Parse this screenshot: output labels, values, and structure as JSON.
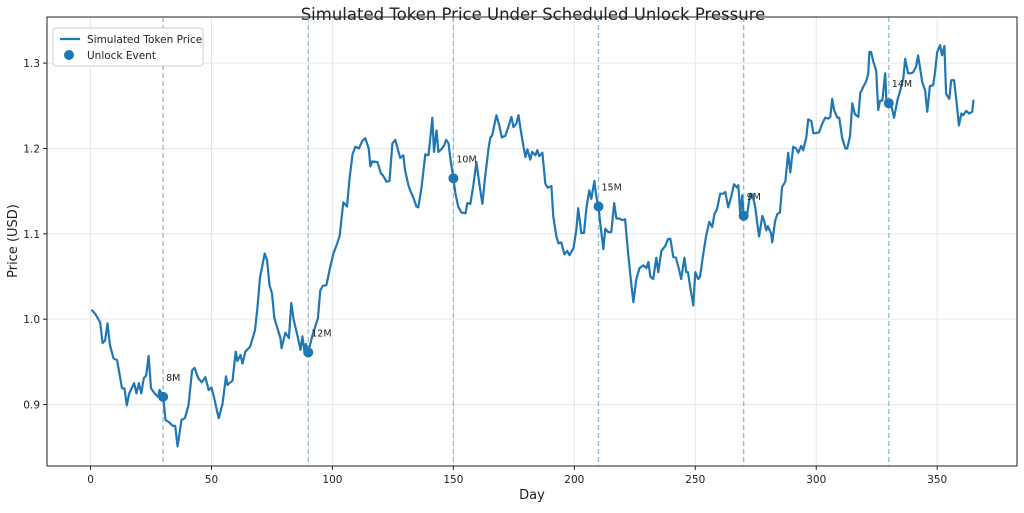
{
  "chart_data": {
    "type": "line",
    "title": "Simulated Token Price Under Scheduled Unlock Pressure",
    "xlabel": "Day",
    "ylabel": "Price (USD)",
    "xlim": [
      -18,
      383
    ],
    "ylim": [
      0.828,
      1.354
    ],
    "xticks": [
      0,
      50,
      100,
      150,
      200,
      250,
      300,
      350
    ],
    "yticks": [
      0.9,
      1.0,
      1.1,
      1.2,
      1.3
    ],
    "ytick_labels": [
      "0.9",
      "1.0",
      "1.1",
      "1.2",
      "1.3"
    ],
    "grid": true,
    "legend_position": "top-left",
    "colors": {
      "line": "#1f77b4",
      "unlock_marker": "#1f77b4",
      "unlock_vline": "#8fbcd8"
    },
    "series": [
      {
        "name": "Simulated Token Price",
        "x": [
          0.4,
          2,
          4,
          5,
          6,
          7,
          8,
          9.5,
          11,
          13,
          14,
          15,
          16,
          18,
          19,
          20,
          21,
          22,
          23,
          24,
          25,
          26.5,
          28,
          28.5,
          30,
          31,
          32.6,
          34,
          35,
          36,
          37.6,
          39,
          40.5,
          42,
          43,
          44.5,
          46,
          47.5,
          48.8,
          50,
          51,
          53,
          54.5,
          56,
          56.6,
          58.7,
          60,
          60.7,
          62,
          62.8,
          64,
          66,
          68,
          69,
          70,
          72,
          73,
          74,
          75,
          76,
          78.5,
          79,
          80.5,
          82,
          83,
          84,
          85.5,
          86.8,
          87.6,
          88.4,
          89,
          90,
          91.7,
          94,
          95,
          96,
          97.5,
          99,
          100.4,
          102,
          103,
          104.5,
          106,
          107,
          108.3,
          109.5,
          111,
          112.4,
          113.6,
          115,
          115.7,
          116.5,
          118.6,
          120,
          121,
          122.3,
          123.6,
          124.8,
          126,
          127.3,
          128,
          129.3,
          130,
          131.4,
          132,
          133.5,
          134.7,
          135.5,
          136.8,
          138.4,
          139.7,
          141,
          141.3,
          142,
          143,
          143.8,
          145,
          146.3,
          147,
          148,
          149,
          150,
          150.8,
          152,
          153.3,
          155,
          155.8,
          157,
          158.3,
          159.5,
          160.7,
          162,
          163,
          164.5,
          165.3,
          166,
          167.8,
          169,
          170,
          171.5,
          172.7,
          174,
          174.8,
          176,
          176.9,
          177.7,
          179,
          179.8,
          180.6,
          181.8,
          182.6,
          183.9,
          184.7,
          185.5,
          186.8,
          188,
          189,
          190.5,
          191.3,
          192.6,
          193.4,
          194.6,
          195.9,
          197,
          198,
          199.6,
          200.8,
          201.6,
          202.9,
          204,
          205,
          206.2,
          207,
          208.3,
          209,
          210,
          210.7,
          212,
          212.8,
          214,
          215.3,
          216.5,
          217.4,
          218.6,
          219.8,
          221,
          222.3,
          223.5,
          224.4,
          225.6,
          227,
          228.5,
          229.8,
          230.6,
          231.4,
          232.6,
          233.9,
          234.7,
          236,
          237.6,
          238.8,
          239.7,
          240.9,
          242,
          243.4,
          244.2,
          245.5,
          246.3,
          247,
          248,
          249.2,
          250,
          251.2,
          252,
          253.3,
          254.5,
          255.8,
          257,
          257.9,
          259,
          260.3,
          261.6,
          262.4,
          263.6,
          264.9,
          266,
          267.4,
          267.8,
          268.6,
          269.4,
          270,
          271.5,
          272.7,
          273.6,
          274.8,
          275.6,
          276.4,
          277.7,
          278.5,
          279.3,
          280,
          281.4,
          281.8,
          283,
          283.9,
          285,
          285.9,
          287.2,
          288.4,
          289.3,
          290.5,
          291.7,
          292.6,
          293.8,
          294.6,
          295.9,
          296.7,
          298,
          298.8,
          300,
          301.2,
          302.5,
          303.7,
          305,
          305.8,
          306.6,
          307.4,
          308.7,
          309.5,
          310.7,
          312,
          312.8,
          314,
          314.9,
          316,
          317.4,
          318.2,
          319.4,
          320.7,
          321.5,
          322,
          322.7,
          323.6,
          324.8,
          325.6,
          326.4,
          327.3,
          328.5,
          329,
          330,
          331,
          332.2,
          333.5,
          334.7,
          336,
          336.8,
          338,
          338.8,
          340,
          341.3,
          342.1,
          343.8,
          345,
          345.9,
          347,
          348.3,
          349,
          350,
          351.2,
          352,
          353,
          353.7,
          355,
          355.8,
          357,
          357.9,
          359,
          360,
          360.7,
          362,
          363.2,
          364.5,
          365
        ],
        "y": [
          1.011,
          1.006,
          0.996,
          0.972,
          0.975,
          0.995,
          0.97,
          0.954,
          0.952,
          0.919,
          0.919,
          0.899,
          0.913,
          0.925,
          0.913,
          0.925,
          0.913,
          0.931,
          0.934,
          0.957,
          0.919,
          0.913,
          0.909,
          0.917,
          0.91,
          0.882,
          0.879,
          0.875,
          0.875,
          0.851,
          0.882,
          0.884,
          0.899,
          0.94,
          0.943,
          0.931,
          0.926,
          0.932,
          0.917,
          0.92,
          0.909,
          0.884,
          0.9,
          0.933,
          0.923,
          0.928,
          0.962,
          0.951,
          0.958,
          0.948,
          0.962,
          0.968,
          0.987,
          1.013,
          1.048,
          1.077,
          1.069,
          1.04,
          1.03,
          1.001,
          0.978,
          0.966,
          0.984,
          0.978,
          1.019,
          0.999,
          0.981,
          0.964,
          0.98,
          0.962,
          0.971,
          0.961,
          0.981,
          1.001,
          1.034,
          1.039,
          1.04,
          1.06,
          1.077,
          1.089,
          1.098,
          1.137,
          1.132,
          1.163,
          1.193,
          1.202,
          1.2,
          1.209,
          1.212,
          1.2,
          1.179,
          1.185,
          1.184,
          1.171,
          1.168,
          1.161,
          1.162,
          1.206,
          1.21,
          1.196,
          1.189,
          1.192,
          1.175,
          1.157,
          1.152,
          1.142,
          1.132,
          1.131,
          1.154,
          1.193,
          1.192,
          1.227,
          1.236,
          1.196,
          1.221,
          1.196,
          1.199,
          1.204,
          1.21,
          1.206,
          1.183,
          1.165,
          1.148,
          1.132,
          1.125,
          1.124,
          1.136,
          1.135,
          1.158,
          1.184,
          1.159,
          1.135,
          1.163,
          1.2,
          1.213,
          1.215,
          1.239,
          1.227,
          1.213,
          1.215,
          1.225,
          1.237,
          1.225,
          1.229,
          1.239,
          1.224,
          1.202,
          1.19,
          1.199,
          1.187,
          1.196,
          1.192,
          1.198,
          1.191,
          1.195,
          1.159,
          1.154,
          1.156,
          1.12,
          1.097,
          1.089,
          1.09,
          1.076,
          1.08,
          1.075,
          1.083,
          1.104,
          1.13,
          1.101,
          1.101,
          1.13,
          1.151,
          1.141,
          1.162,
          1.145,
          1.132,
          1.113,
          1.082,
          1.106,
          1.102,
          1.102,
          1.136,
          1.118,
          1.118,
          1.116,
          1.117,
          1.075,
          1.042,
          1.02,
          1.047,
          1.06,
          1.063,
          1.06,
          1.067,
          1.05,
          1.047,
          1.072,
          1.055,
          1.08,
          1.086,
          1.094,
          1.094,
          1.073,
          1.072,
          1.057,
          1.047,
          1.072,
          1.055,
          1.055,
          1.036,
          1.016,
          1.055,
          1.047,
          1.05,
          1.077,
          1.098,
          1.114,
          1.108,
          1.123,
          1.129,
          1.147,
          1.147,
          1.149,
          1.131,
          1.144,
          1.158,
          1.154,
          1.157,
          1.122,
          1.145,
          1.122,
          1.124,
          1.147,
          1.146,
          1.131,
          1.113,
          1.097,
          1.121,
          1.115,
          1.104,
          1.109,
          1.1,
          1.09,
          1.115,
          1.123,
          1.125,
          1.155,
          1.161,
          1.195,
          1.172,
          1.202,
          1.2,
          1.195,
          1.203,
          1.198,
          1.213,
          1.234,
          1.232,
          1.218,
          1.218,
          1.219,
          1.229,
          1.236,
          1.235,
          1.237,
          1.258,
          1.245,
          1.236,
          1.236,
          1.213,
          1.2,
          1.2,
          1.215,
          1.253,
          1.24,
          1.237,
          1.265,
          1.272,
          1.279,
          1.287,
          1.313,
          1.313,
          1.302,
          1.291,
          1.245,
          1.256,
          1.256,
          1.288,
          1.256,
          1.253,
          1.251,
          1.236,
          1.256,
          1.268,
          1.282,
          1.305,
          1.288,
          1.288,
          1.289,
          1.296,
          1.309,
          1.278,
          1.268,
          1.243,
          1.273,
          1.274,
          1.287,
          1.313,
          1.321,
          1.309,
          1.32,
          1.264,
          1.258,
          1.28,
          1.28,
          1.257,
          1.227,
          1.241,
          1.239,
          1.244,
          1.241,
          1.243,
          1.257
        ]
      }
    ],
    "unlock_events": {
      "name": "Unlock Event",
      "days": [
        30,
        90,
        150,
        210,
        270,
        330
      ],
      "prices": [
        0.909,
        0.961,
        1.165,
        1.132,
        1.121,
        1.253
      ],
      "labels": [
        "8M",
        "12M",
        "10M",
        "15M",
        "9M",
        "14M"
      ]
    }
  }
}
